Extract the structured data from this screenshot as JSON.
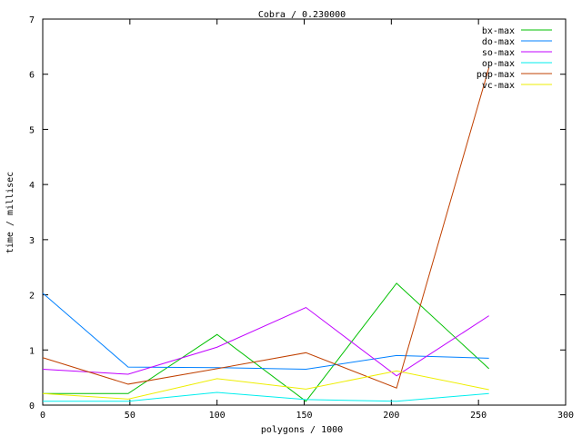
{
  "chart_data": {
    "type": "line",
    "title": "Cobra / 0.230000",
    "xlabel": "polygons / 1000",
    "ylabel": "time / millisec",
    "xlim": [
      0,
      300
    ],
    "ylim": [
      0,
      7
    ],
    "xticks": [
      "0",
      "50",
      "100",
      "150",
      "200",
      "250",
      "300"
    ],
    "yticks": [
      "0",
      "1",
      "2",
      "3",
      "4",
      "5",
      "6",
      "7"
    ],
    "grid": false,
    "legend_position": "top-right",
    "x": [
      0,
      49,
      100,
      151,
      203,
      256
    ],
    "series": [
      {
        "name": "bx-max",
        "color": "#00c000",
        "values": [
          0.21,
          0.21,
          1.28,
          0.07,
          2.21,
          0.66
        ]
      },
      {
        "name": "do-max",
        "color": "#0080ff",
        "values": [
          2.03,
          0.69,
          0.68,
          0.65,
          0.9,
          0.85
        ]
      },
      {
        "name": "so-max",
        "color": "#c000ff",
        "values": [
          0.65,
          0.56,
          1.05,
          1.77,
          0.53,
          1.62
        ]
      },
      {
        "name": "op-max",
        "color": "#00eeee",
        "values": [
          0.07,
          0.07,
          0.23,
          0.1,
          0.07,
          0.21
        ]
      },
      {
        "name": "pqp-max",
        "color": "#c04000",
        "values": [
          0.86,
          0.38,
          0.66,
          0.95,
          0.31,
          6.12
        ]
      },
      {
        "name": "vc-max",
        "color": "#eeee00",
        "values": [
          0.21,
          0.11,
          0.48,
          0.29,
          0.62,
          0.28
        ]
      }
    ]
  }
}
